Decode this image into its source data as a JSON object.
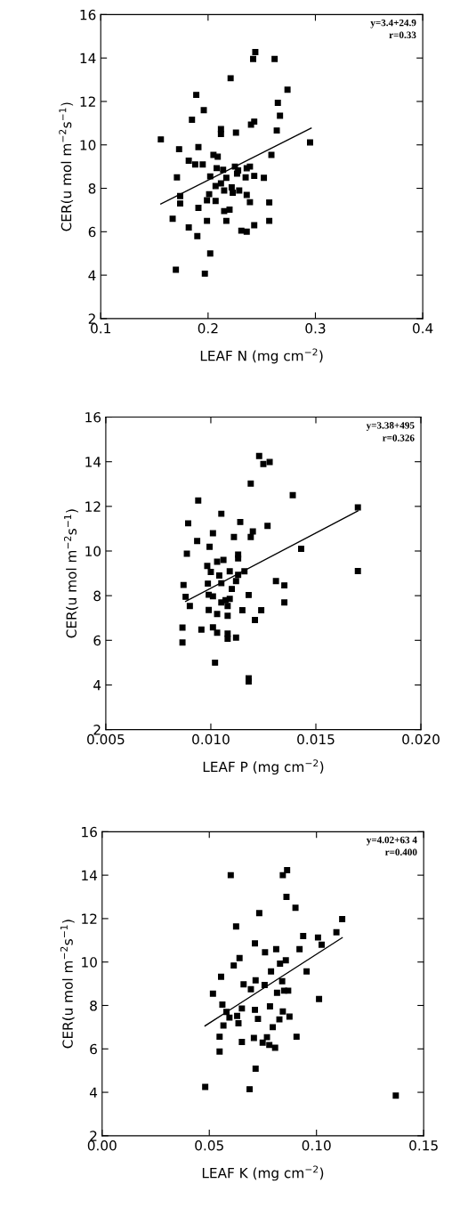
{
  "chart_data": [
    {
      "type": "scatter",
      "xlabel": "LEAF N (mg cm$^{−2}$)",
      "ylabel": "CER(u mol m$^{−2}$s$^{−1}$)",
      "annotations": [
        "y=3.4+24.9",
        "r=0.33"
      ],
      "xlim": [
        0.1,
        0.4
      ],
      "ylim": [
        2,
        16
      ],
      "xticks": [
        0.1,
        0.2,
        0.3,
        0.4
      ],
      "yticks": [
        2,
        4,
        6,
        8,
        10,
        12,
        14,
        16
      ],
      "series": [
        {
          "color": "#000000",
          "marker": "square",
          "x": [
            0.156,
            0.17,
            0.167,
            0.171,
            0.173,
            0.174,
            0.174,
            0.182,
            0.182,
            0.185,
            0.188,
            0.189,
            0.19,
            0.191,
            0.191,
            0.195,
            0.196,
            0.197,
            0.199,
            0.199,
            0.201,
            0.202,
            0.202,
            0.205,
            0.207,
            0.207,
            0.208,
            0.209,
            0.212,
            0.212,
            0.212,
            0.214,
            0.215,
            0.215,
            0.217,
            0.217,
            0.22,
            0.221,
            0.222,
            0.223,
            0.225,
            0.226,
            0.227,
            0.228,
            0.229,
            0.231,
            0.235,
            0.236,
            0.236,
            0.236,
            0.239,
            0.239,
            0.24,
            0.242,
            0.243,
            0.243,
            0.244,
            0.243,
            0.252,
            0.257,
            0.257,
            0.259,
            0.262,
            0.264,
            0.265,
            0.267,
            0.274,
            0.295
          ],
          "values": [
            10.25,
            4.25,
            6.6,
            8.5,
            9.8,
            7.64,
            7.3,
            6.2,
            9.27,
            11.16,
            9.1,
            12.3,
            5.8,
            7.1,
            9.9,
            9.1,
            11.6,
            4.07,
            6.5,
            7.45,
            7.73,
            5.0,
            8.55,
            9.54,
            8.1,
            7.42,
            8.93,
            9.46,
            10.73,
            10.5,
            8.23,
            8.85,
            6.95,
            7.9,
            8.48,
            6.5,
            7.02,
            13.07,
            8.04,
            7.8,
            9.0,
            10.56,
            8.68,
            8.82,
            7.9,
            6.05,
            8.5,
            6.0,
            8.92,
            7.69,
            7.36,
            9.0,
            10.93,
            13.96,
            11.07,
            6.3,
            14.27,
            8.57,
            8.48,
            7.35,
            6.5,
            9.54,
            13.96,
            10.66,
            11.94,
            11.34,
            12.54,
            10.11
          ]
        },
        {
          "type": "line",
          "color": "#000000",
          "x": [
            0.156,
            0.296
          ],
          "values": [
            7.28,
            10.77
          ]
        }
      ]
    },
    {
      "type": "scatter",
      "xlabel": "LEAF P (mg cm$^{−2}$)",
      "ylabel": "CER(u mol m$^{−2}$s$^{−1}$)",
      "annotations": [
        "y=3.38+495",
        "r=0.326"
      ],
      "xlim": [
        0.005,
        0.02
      ],
      "ylim": [
        2,
        16
      ],
      "xticks": [
        {
          "value": 0.005,
          "label": "0.005"
        },
        {
          "value": 0.01,
          "label": "0.010"
        },
        {
          "value": 0.015,
          "label": "0.015"
        },
        {
          "value": 0.02,
          "label": "0.020"
        }
      ],
      "yticks": [
        2,
        4,
        6,
        8,
        10,
        12,
        14,
        16
      ],
      "series": [
        {
          "color": "#000000",
          "marker": "square",
          "x": [
            0.00865,
            0.00865,
            0.0087,
            0.0088,
            0.00886,
            0.00892,
            0.009,
            0.00935,
            0.0094,
            0.00955,
            0.00983,
            0.00986,
            0.0099,
            0.00994,
            0.0099,
            0.01,
            0.0101,
            0.0101,
            0.0102,
            0.0101,
            0.0103,
            0.0103,
            0.0103,
            0.0104,
            0.0105,
            0.0105,
            0.0105,
            0.0106,
            0.0107,
            0.0108,
            0.0108,
            0.0108,
            0.0108,
            0.0109,
            0.0109,
            0.011,
            0.0111,
            0.0112,
            0.0112,
            0.0113,
            0.0113,
            0.0113,
            0.0114,
            0.0115,
            0.0116,
            0.0118,
            0.0118,
            0.0118,
            0.0119,
            0.0119,
            0.012,
            0.0121,
            0.0123,
            0.0124,
            0.0125,
            0.0127,
            0.0128,
            0.0131,
            0.0135,
            0.0135,
            0.0139,
            0.0143,
            0.017,
            0.017
          ],
          "values": [
            5.9,
            6.57,
            8.48,
            7.95,
            9.88,
            11.24,
            7.54,
            10.45,
            12.26,
            6.48,
            9.33,
            8.54,
            8.04,
            10.19,
            7.36,
            9.06,
            10.8,
            7.97,
            5.0,
            6.58,
            7.18,
            6.34,
            9.52,
            8.9,
            8.56,
            7.7,
            11.67,
            9.6,
            7.8,
            6.3,
            7.54,
            7.1,
            6.07,
            9.09,
            7.86,
            8.3,
            10.63,
            6.12,
            8.65,
            8.93,
            9.67,
            9.84,
            11.3,
            7.35,
            9.09,
            4.16,
            4.3,
            8.03,
            13.02,
            10.63,
            10.88,
            6.91,
            14.26,
            7.35,
            13.9,
            11.13,
            13.99,
            8.65,
            8.46,
            7.7,
            12.5,
            10.1,
            11.95,
            9.1
          ]
        },
        {
          "type": "line",
          "color": "#000000",
          "x": [
            0.0088,
            0.017
          ],
          "values": [
            7.74,
            11.8
          ]
        }
      ]
    },
    {
      "type": "scatter",
      "xlabel": "LEAF K (mg cm$^{−2}$)",
      "ylabel": "CER(u mol m$^{−2}$s$^{−1}$)",
      "annotations": [
        "y=4.02+63 4",
        "r=0.400"
      ],
      "xlim": [
        0.0,
        0.15
      ],
      "ylim": [
        2,
        16
      ],
      "xticks": [
        {
          "value": 0.0,
          "label": "0.00"
        },
        {
          "value": 0.05,
          "label": "0.05"
        },
        {
          "value": 0.1,
          "label": "0.10"
        },
        {
          "value": 0.15,
          "label": "0.15"
        }
      ],
      "yticks": [
        2,
        4,
        6,
        8,
        10,
        12,
        14,
        16
      ],
      "series": [
        {
          "color": "#000000",
          "marker": "square",
          "x": [
            0.0481,
            0.0517,
            0.0548,
            0.0548,
            0.0555,
            0.0561,
            0.0566,
            0.058,
            0.0594,
            0.06,
            0.0625,
            0.063,
            0.0636,
            0.0641,
            0.0614,
            0.0652,
            0.0652,
            0.066,
            0.0688,
            0.0694,
            0.0708,
            0.0713,
            0.0713,
            0.0716,
            0.0716,
            0.0727,
            0.0733,
            0.0749,
            0.0758,
            0.076,
            0.0769,
            0.078,
            0.0783,
            0.0788,
            0.0796,
            0.0807,
            0.0812,
            0.0816,
            0.0827,
            0.083,
            0.084,
            0.0843,
            0.0843,
            0.0849,
            0.0857,
            0.086,
            0.0863,
            0.0868,
            0.0874,
            0.0902,
            0.0907,
            0.0921,
            0.0938,
            0.0954,
            0.1007,
            0.1012,
            0.1024,
            0.1093,
            0.112,
            0.137
          ],
          "values": [
            4.25,
            8.54,
            6.56,
            5.88,
            9.32,
            8.04,
            7.08,
            7.7,
            7.44,
            14.0,
            11.64,
            7.52,
            7.18,
            10.18,
            9.84,
            6.32,
            7.86,
            8.97,
            4.14,
            8.75,
            6.5,
            10.86,
            7.8,
            5.09,
            9.16,
            7.38,
            12.25,
            6.29,
            8.94,
            10.45,
            6.54,
            6.18,
            7.96,
            9.57,
            7.0,
            6.05,
            10.59,
            8.58,
            7.36,
            9.93,
            9.12,
            7.72,
            14.0,
            8.68,
            10.08,
            13.0,
            14.23,
            8.68,
            7.49,
            12.5,
            6.56,
            10.59,
            11.2,
            9.57,
            11.13,
            8.3,
            10.8,
            11.37,
            11.98,
            3.85
          ]
        },
        {
          "type": "line",
          "color": "#000000",
          "x": [
            0.048,
            0.112
          ],
          "values": [
            7.06,
            11.12
          ]
        }
      ]
    }
  ]
}
